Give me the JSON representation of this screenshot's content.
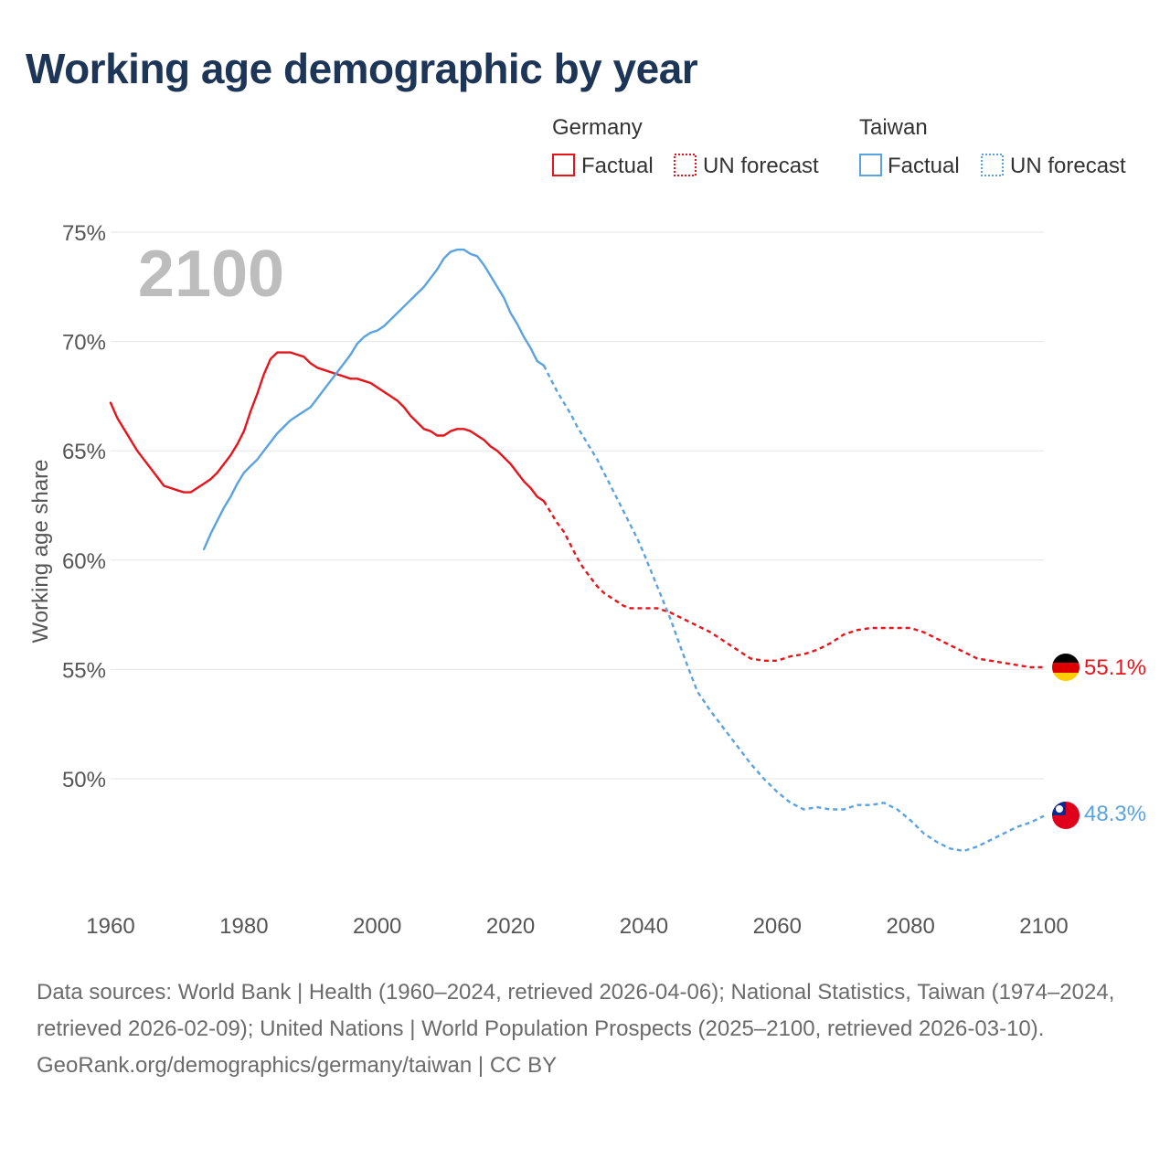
{
  "title": "Working age demographic by year",
  "legend": {
    "groups": [
      {
        "name": "Germany",
        "factual": "Factual",
        "forecast": "UN forecast"
      },
      {
        "name": "Taiwan",
        "factual": "Factual",
        "forecast": "UN forecast"
      }
    ]
  },
  "footer": {
    "sources": "Data sources: World Bank | Health (1960–2024, retrieved 2026-04-06); National Statistics, Taiwan (1974–2024, retrieved 2026-02-09); United Nations | World Population Prospects (2025–2100, retrieved 2026-03-10).",
    "credit": "GeoRank.org/demographics/germany/taiwan | CC BY"
  },
  "chart_data": {
    "type": "line",
    "title": "Working age demographic by year",
    "year_label": "2100",
    "ylabel": "Working age share",
    "xlabel": "",
    "xlim": [
      1960,
      2100
    ],
    "ylim": [
      44.5,
      75
    ],
    "x_ticks": [
      "1960",
      "1980",
      "2000",
      "2020",
      "2040",
      "2060",
      "2080",
      "2100"
    ],
    "x_tick_values": [
      1960,
      1980,
      2000,
      2020,
      2040,
      2060,
      2080,
      2100
    ],
    "y_ticks": [
      "50%",
      "55%",
      "60%",
      "65%",
      "70%",
      "75%"
    ],
    "y_tick_values": [
      50,
      55,
      60,
      65,
      70,
      75
    ],
    "grid": true,
    "series": [
      {
        "name": "Germany",
        "color": "#e8141b",
        "end_label": "55.1%",
        "factual": [
          [
            1960,
            67.2
          ],
          [
            1961,
            66.5
          ],
          [
            1962,
            66.0
          ],
          [
            1963,
            65.5
          ],
          [
            1964,
            65.0
          ],
          [
            1965,
            64.6
          ],
          [
            1966,
            64.2
          ],
          [
            1967,
            63.8
          ],
          [
            1968,
            63.4
          ],
          [
            1969,
            63.3
          ],
          [
            1970,
            63.2
          ],
          [
            1971,
            63.1
          ],
          [
            1972,
            63.1
          ],
          [
            1973,
            63.3
          ],
          [
            1974,
            63.5
          ],
          [
            1975,
            63.7
          ],
          [
            1976,
            64.0
          ],
          [
            1977,
            64.4
          ],
          [
            1978,
            64.8
          ],
          [
            1979,
            65.3
          ],
          [
            1980,
            65.9
          ],
          [
            1981,
            66.8
          ],
          [
            1982,
            67.6
          ],
          [
            1983,
            68.5
          ],
          [
            1984,
            69.2
          ],
          [
            1985,
            69.5
          ],
          [
            1986,
            69.5
          ],
          [
            1987,
            69.5
          ],
          [
            1988,
            69.4
          ],
          [
            1989,
            69.3
          ],
          [
            1990,
            69.0
          ],
          [
            1991,
            68.8
          ],
          [
            1992,
            68.7
          ],
          [
            1993,
            68.6
          ],
          [
            1994,
            68.5
          ],
          [
            1995,
            68.4
          ],
          [
            1996,
            68.3
          ],
          [
            1997,
            68.3
          ],
          [
            1998,
            68.2
          ],
          [
            1999,
            68.1
          ],
          [
            2000,
            67.9
          ],
          [
            2001,
            67.7
          ],
          [
            2002,
            67.5
          ],
          [
            2003,
            67.3
          ],
          [
            2004,
            67.0
          ],
          [
            2005,
            66.6
          ],
          [
            2006,
            66.3
          ],
          [
            2007,
            66.0
          ],
          [
            2008,
            65.9
          ],
          [
            2009,
            65.7
          ],
          [
            2010,
            65.7
          ],
          [
            2011,
            65.9
          ],
          [
            2012,
            66.0
          ],
          [
            2013,
            66.0
          ],
          [
            2014,
            65.9
          ],
          [
            2015,
            65.7
          ],
          [
            2016,
            65.5
          ],
          [
            2017,
            65.2
          ],
          [
            2018,
            65.0
          ],
          [
            2019,
            64.7
          ],
          [
            2020,
            64.4
          ],
          [
            2021,
            64.0
          ],
          [
            2022,
            63.6
          ],
          [
            2023,
            63.3
          ],
          [
            2024,
            62.9
          ],
          [
            2025,
            62.7
          ]
        ],
        "forecast": [
          [
            2025,
            62.7
          ],
          [
            2026,
            62.2
          ],
          [
            2027,
            61.7
          ],
          [
            2028,
            61.3
          ],
          [
            2029,
            60.7
          ],
          [
            2030,
            60.1
          ],
          [
            2031,
            59.6
          ],
          [
            2032,
            59.2
          ],
          [
            2033,
            58.8
          ],
          [
            2034,
            58.5
          ],
          [
            2035,
            58.3
          ],
          [
            2036,
            58.1
          ],
          [
            2037,
            57.9
          ],
          [
            2038,
            57.8
          ],
          [
            2040,
            57.8
          ],
          [
            2042,
            57.8
          ],
          [
            2044,
            57.6
          ],
          [
            2046,
            57.3
          ],
          [
            2048,
            57.0
          ],
          [
            2050,
            56.7
          ],
          [
            2052,
            56.3
          ],
          [
            2054,
            55.9
          ],
          [
            2056,
            55.5
          ],
          [
            2058,
            55.4
          ],
          [
            2060,
            55.4
          ],
          [
            2062,
            55.6
          ],
          [
            2064,
            55.7
          ],
          [
            2066,
            55.9
          ],
          [
            2068,
            56.2
          ],
          [
            2070,
            56.6
          ],
          [
            2072,
            56.8
          ],
          [
            2074,
            56.9
          ],
          [
            2076,
            56.9
          ],
          [
            2078,
            56.9
          ],
          [
            2080,
            56.9
          ],
          [
            2082,
            56.7
          ],
          [
            2084,
            56.4
          ],
          [
            2086,
            56.1
          ],
          [
            2088,
            55.8
          ],
          [
            2090,
            55.5
          ],
          [
            2092,
            55.4
          ],
          [
            2094,
            55.3
          ],
          [
            2096,
            55.2
          ],
          [
            2098,
            55.1
          ],
          [
            2100,
            55.1
          ]
        ]
      },
      {
        "name": "Taiwan",
        "color": "#5aa3e0",
        "end_label": "48.3%",
        "factual": [
          [
            1974,
            60.5
          ],
          [
            1975,
            61.2
          ],
          [
            1976,
            61.8
          ],
          [
            1977,
            62.4
          ],
          [
            1978,
            62.9
          ],
          [
            1979,
            63.5
          ],
          [
            1980,
            64.0
          ],
          [
            1981,
            64.3
          ],
          [
            1982,
            64.6
          ],
          [
            1983,
            65.0
          ],
          [
            1984,
            65.4
          ],
          [
            1985,
            65.8
          ],
          [
            1986,
            66.1
          ],
          [
            1987,
            66.4
          ],
          [
            1988,
            66.6
          ],
          [
            1989,
            66.8
          ],
          [
            1990,
            67.0
          ],
          [
            1991,
            67.4
          ],
          [
            1992,
            67.8
          ],
          [
            1993,
            68.2
          ],
          [
            1994,
            68.6
          ],
          [
            1995,
            69.0
          ],
          [
            1996,
            69.4
          ],
          [
            1997,
            69.9
          ],
          [
            1998,
            70.2
          ],
          [
            1999,
            70.4
          ],
          [
            2000,
            70.5
          ],
          [
            2001,
            70.7
          ],
          [
            2002,
            71.0
          ],
          [
            2003,
            71.3
          ],
          [
            2004,
            71.6
          ],
          [
            2005,
            71.9
          ],
          [
            2006,
            72.2
          ],
          [
            2007,
            72.5
          ],
          [
            2008,
            72.9
          ],
          [
            2009,
            73.3
          ],
          [
            2010,
            73.8
          ],
          [
            2011,
            74.1
          ],
          [
            2012,
            74.2
          ],
          [
            2013,
            74.2
          ],
          [
            2014,
            74.0
          ],
          [
            2015,
            73.9
          ],
          [
            2016,
            73.5
          ],
          [
            2017,
            73.0
          ],
          [
            2018,
            72.5
          ],
          [
            2019,
            72.0
          ],
          [
            2020,
            71.3
          ],
          [
            2021,
            70.8
          ],
          [
            2022,
            70.2
          ],
          [
            2023,
            69.7
          ],
          [
            2024,
            69.1
          ],
          [
            2025,
            68.9
          ]
        ],
        "forecast": [
          [
            2025,
            68.9
          ],
          [
            2026,
            68.3
          ],
          [
            2027,
            67.7
          ],
          [
            2028,
            67.2
          ],
          [
            2029,
            66.7
          ],
          [
            2030,
            66.1
          ],
          [
            2031,
            65.6
          ],
          [
            2032,
            65.1
          ],
          [
            2033,
            64.6
          ],
          [
            2034,
            64.0
          ],
          [
            2035,
            63.4
          ],
          [
            2036,
            62.8
          ],
          [
            2037,
            62.2
          ],
          [
            2038,
            61.6
          ],
          [
            2039,
            61.0
          ],
          [
            2040,
            60.3
          ],
          [
            2042,
            58.8
          ],
          [
            2044,
            57.3
          ],
          [
            2046,
            55.6
          ],
          [
            2048,
            54.0
          ],
          [
            2050,
            53.1
          ],
          [
            2052,
            52.3
          ],
          [
            2054,
            51.5
          ],
          [
            2056,
            50.7
          ],
          [
            2058,
            50.0
          ],
          [
            2060,
            49.4
          ],
          [
            2062,
            48.9
          ],
          [
            2064,
            48.6
          ],
          [
            2066,
            48.7
          ],
          [
            2068,
            48.6
          ],
          [
            2070,
            48.6
          ],
          [
            2072,
            48.8
          ],
          [
            2074,
            48.8
          ],
          [
            2076,
            48.9
          ],
          [
            2078,
            48.6
          ],
          [
            2080,
            48.1
          ],
          [
            2082,
            47.5
          ],
          [
            2084,
            47.1
          ],
          [
            2086,
            46.8
          ],
          [
            2088,
            46.7
          ],
          [
            2090,
            46.9
          ],
          [
            2092,
            47.2
          ],
          [
            2094,
            47.5
          ],
          [
            2096,
            47.8
          ],
          [
            2098,
            48.0
          ],
          [
            2100,
            48.3
          ]
        ]
      }
    ]
  }
}
